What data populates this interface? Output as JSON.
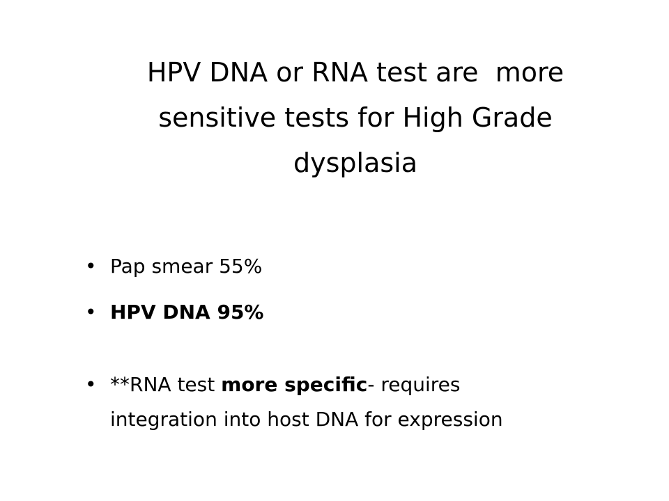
{
  "title_lines": [
    "HPV DNA or RNA test are  more",
    "sensitive tests for High Grade",
    "dysplasia"
  ],
  "bullets": [
    {
      "lines": [
        [
          {
            "text": "Pap smear 55%",
            "bold": false
          }
        ]
      ]
    },
    {
      "lines": [
        [
          {
            "text": "HPV DNA 95%",
            "bold": true
          }
        ]
      ]
    },
    {
      "lines": [
        [
          {
            "text": "**RNA test ",
            "bold": false
          },
          {
            "text": "more specific",
            "bold": true
          },
          {
            "text": "- requires",
            "bold": false
          }
        ],
        [
          {
            "text": "integration into host DNA for expression",
            "bold": false
          }
        ]
      ]
    }
  ]
}
